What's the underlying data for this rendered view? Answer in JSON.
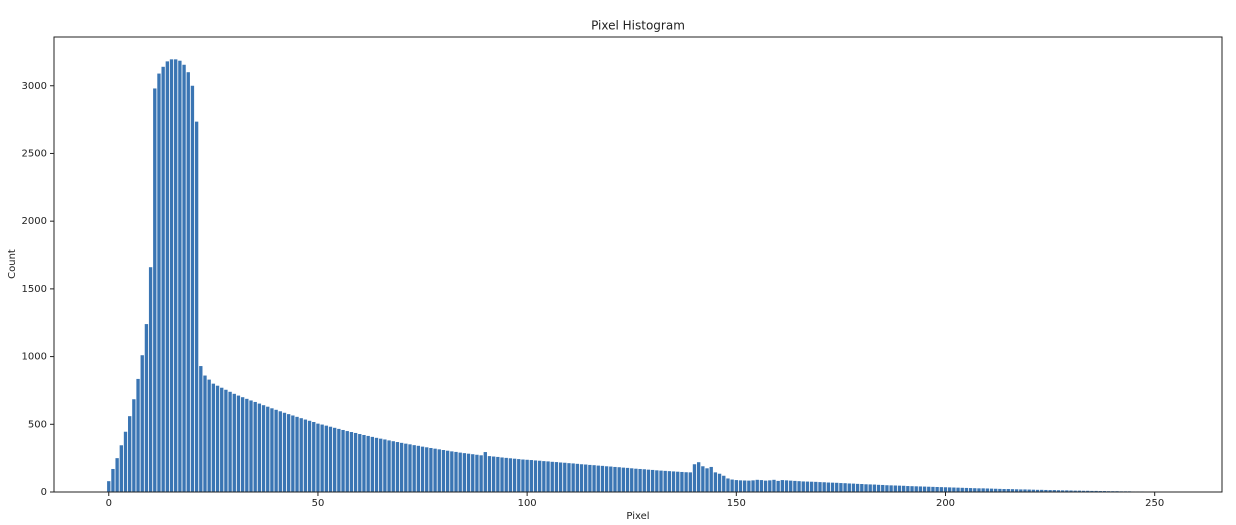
{
  "chart_data": {
    "type": "bar",
    "title": "Pixel Histogram",
    "x_label": "Pixel",
    "y_label": "Count",
    "color": "#3a75b3",
    "x": [
      0,
      1,
      2,
      3,
      4,
      5,
      6,
      7,
      8,
      9,
      10,
      11,
      12,
      13,
      14,
      15,
      16,
      17,
      18,
      19,
      20,
      21,
      22,
      23,
      24,
      25,
      26,
      27,
      28,
      29,
      30,
      31,
      32,
      33,
      34,
      35,
      36,
      37,
      38,
      39,
      40,
      41,
      42,
      43,
      44,
      45,
      46,
      47,
      48,
      49,
      50,
      51,
      52,
      53,
      54,
      55,
      56,
      57,
      58,
      59,
      60,
      61,
      62,
      63,
      64,
      65,
      66,
      67,
      68,
      69,
      70,
      71,
      72,
      73,
      74,
      75,
      76,
      77,
      78,
      79,
      80,
      81,
      82,
      83,
      84,
      85,
      86,
      87,
      88,
      89,
      90,
      91,
      92,
      93,
      94,
      95,
      96,
      97,
      98,
      99,
      100,
      101,
      102,
      103,
      104,
      105,
      106,
      107,
      108,
      109,
      110,
      111,
      112,
      113,
      114,
      115,
      116,
      117,
      118,
      119,
      120,
      121,
      122,
      123,
      124,
      125,
      126,
      127,
      128,
      129,
      130,
      131,
      132,
      133,
      134,
      135,
      136,
      137,
      138,
      139,
      140,
      141,
      142,
      143,
      144,
      145,
      146,
      147,
      148,
      149,
      150,
      151,
      152,
      153,
      154,
      155,
      156,
      157,
      158,
      159,
      160,
      161,
      162,
      163,
      164,
      165,
      166,
      167,
      168,
      169,
      170,
      171,
      172,
      173,
      174,
      175,
      176,
      177,
      178,
      179,
      180,
      181,
      182,
      183,
      184,
      185,
      186,
      187,
      188,
      189,
      190,
      191,
      192,
      193,
      194,
      195,
      196,
      197,
      198,
      199,
      200,
      201,
      202,
      203,
      204,
      205,
      206,
      207,
      208,
      209,
      210,
      211,
      212,
      213,
      214,
      215,
      216,
      217,
      218,
      219,
      220,
      221,
      222,
      223,
      224,
      225,
      226,
      227,
      228,
      229,
      230,
      231,
      232,
      233,
      234,
      235,
      236,
      237,
      238,
      239,
      240,
      241,
      242,
      243,
      244,
      245,
      246,
      247,
      248,
      249,
      250,
      251,
      252,
      253
    ],
    "values": [
      80,
      170,
      250,
      345,
      445,
      560,
      685,
      835,
      1010,
      1240,
      1660,
      2980,
      3090,
      3140,
      3180,
      3195,
      3195,
      3185,
      3155,
      3100,
      3000,
      2735,
      930,
      860,
      830,
      800,
      785,
      770,
      755,
      740,
      725,
      712,
      700,
      688,
      676,
      665,
      653,
      641,
      630,
      618,
      607,
      596,
      585,
      575,
      565,
      555,
      545,
      535,
      526,
      517,
      505,
      498,
      490,
      482,
      474,
      466,
      458,
      450,
      443,
      436,
      428,
      421,
      414,
      407,
      400,
      394,
      388,
      381,
      375,
      369,
      363,
      357,
      352,
      346,
      341,
      335,
      330,
      325,
      320,
      315,
      310,
      305,
      300,
      296,
      291,
      287,
      283,
      279,
      275,
      271,
      295,
      265,
      262,
      259,
      255,
      252,
      249,
      246,
      243,
      240,
      238,
      236,
      233,
      231,
      228,
      226,
      223,
      221,
      218,
      216,
      213,
      211,
      208,
      205,
      203,
      200,
      198,
      195,
      193,
      190,
      188,
      185,
      183,
      180,
      178,
      175,
      172,
      170,
      168,
      165,
      163,
      160,
      158,
      156,
      154,
      152,
      150,
      148,
      146,
      145,
      205,
      220,
      190,
      175,
      185,
      145,
      135,
      120,
      100,
      92,
      88,
      86,
      85,
      84,
      86,
      90,
      88,
      84,
      86,
      90,
      82,
      88,
      86,
      84,
      82,
      80,
      78,
      77,
      76,
      75,
      73,
      72,
      70,
      69,
      68,
      66,
      65,
      63,
      62,
      60,
      59,
      57,
      56,
      55,
      53,
      52,
      50,
      49,
      48,
      47,
      46,
      44,
      43,
      42,
      41,
      40,
      39,
      38,
      37,
      36,
      35,
      34,
      33,
      32,
      31,
      30,
      29,
      28,
      27,
      27,
      26,
      25,
      24,
      23,
      22,
      22,
      21,
      20,
      19,
      19,
      18,
      17,
      16,
      16,
      15,
      14,
      14,
      13,
      12,
      12,
      11,
      10,
      10,
      9,
      9,
      8,
      8,
      7,
      7,
      6,
      6,
      6,
      5,
      5,
      5,
      4,
      4,
      4,
      3,
      3,
      3,
      3,
      2,
      2
    ],
    "xlim": [
      -13.09,
      266.09
    ],
    "xticks": [
      0,
      50,
      100,
      150,
      200,
      250
    ],
    "ylim": [
      0,
      3360
    ],
    "yticks": [
      0,
      500,
      1000,
      1500,
      2000,
      2500,
      3000
    ]
  }
}
